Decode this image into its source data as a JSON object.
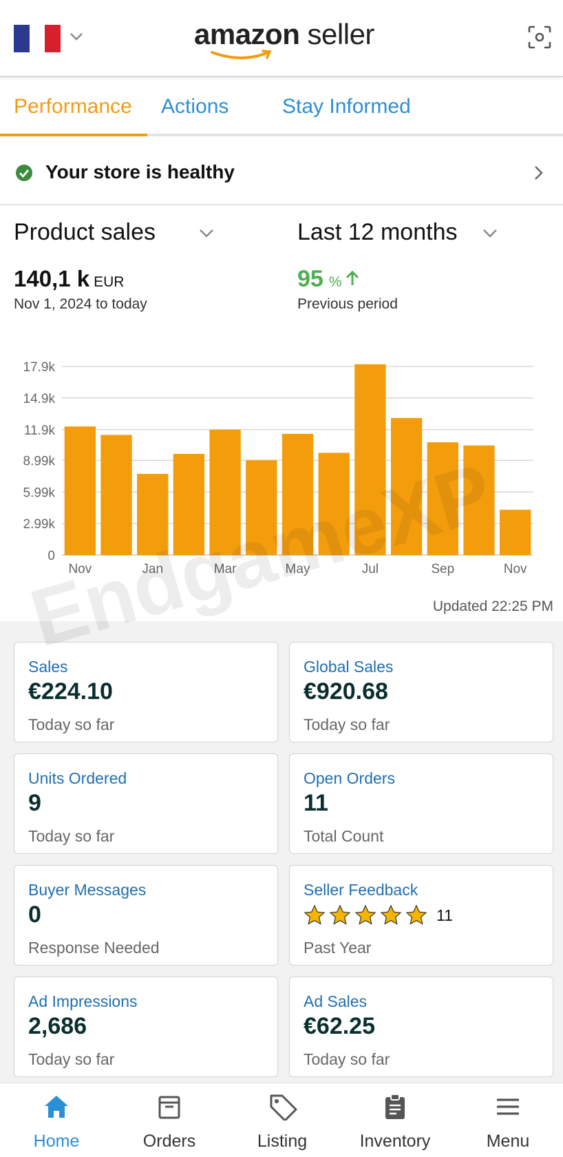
{
  "header": {
    "flag_colors": [
      "#2b3a8f",
      "#ffffff",
      "#d8202c"
    ],
    "logo_bold": "amazon",
    "logo_light": "seller",
    "logo_smile_color": "#f39c12",
    "scan_icon": "scan-icon"
  },
  "tabs": [
    {
      "label": "Performance",
      "active": true
    },
    {
      "label": "Actions",
      "active": false
    },
    {
      "label": "Stay Informed",
      "active": false
    }
  ],
  "health": {
    "text": "Your store is healthy",
    "status_color": "#3f8a3f"
  },
  "metric_selector": {
    "metric": "Product sales",
    "period": "Last 12 months"
  },
  "summary": {
    "total_value": "140,1 k",
    "total_unit": "EUR",
    "date_range": "Nov 1, 2024 to today",
    "change_value": "95",
    "change_unit": "%",
    "change_label": "Previous period",
    "change_color": "#4caf50"
  },
  "chart_data": {
    "type": "bar",
    "categories": [
      "Nov",
      "Dec",
      "Jan",
      "Feb",
      "Mar",
      "Apr",
      "May",
      "Jun",
      "Jul",
      "Aug",
      "Sep",
      "Oct",
      "Nov"
    ],
    "x_tick_labels": [
      "Nov",
      "",
      "Jan",
      "",
      "Mar",
      "",
      "May",
      "",
      "Jul",
      "",
      "Sep",
      "",
      "Nov"
    ],
    "values": [
      12200,
      11400,
      7700,
      9600,
      11900,
      9000,
      11500,
      9700,
      18100,
      13000,
      10700,
      10400,
      4300
    ],
    "y_ticks": [
      "0",
      "2.99k",
      "5.99k",
      "8.99k",
      "11.9k",
      "14.9k",
      "17.9k"
    ],
    "y_tick_values": [
      0,
      2990,
      5990,
      8990,
      11900,
      14900,
      17900
    ],
    "ylim": [
      0,
      17900
    ],
    "grid": true,
    "bar_color": "#f39c0c",
    "title": "",
    "xlabel": "",
    "ylabel": ""
  },
  "updated": "Updated 22:25 PM",
  "cards": [
    {
      "label": "Sales",
      "value": "€224.10",
      "sub": "Today so far"
    },
    {
      "label": "Global Sales",
      "value": "€920.68",
      "sub": "Today so far"
    },
    {
      "label": "Units Ordered",
      "value": "9",
      "sub": "Today so far"
    },
    {
      "label": "Open Orders",
      "value": "11",
      "sub": "Total Count"
    },
    {
      "label": "Buyer Messages",
      "value": "0",
      "sub": "Response Needed"
    },
    {
      "label": "Seller Feedback",
      "rating": 5,
      "rating_count": "11",
      "sub": "Past Year"
    },
    {
      "label": "Ad Impressions",
      "value": "2,686",
      "sub": "Today so far"
    },
    {
      "label": "Ad Sales",
      "value": "€62.25",
      "sub": "Today so far"
    }
  ],
  "nav": [
    {
      "label": "Home",
      "icon": "home-icon",
      "active": true
    },
    {
      "label": "Orders",
      "icon": "box-icon",
      "active": false
    },
    {
      "label": "Listing",
      "icon": "tag-icon",
      "active": false
    },
    {
      "label": "Inventory",
      "icon": "clipboard-icon",
      "active": false
    },
    {
      "label": "Menu",
      "icon": "hamburger-icon",
      "active": false
    }
  ],
  "watermark": {
    "text": "EndgameXP"
  }
}
